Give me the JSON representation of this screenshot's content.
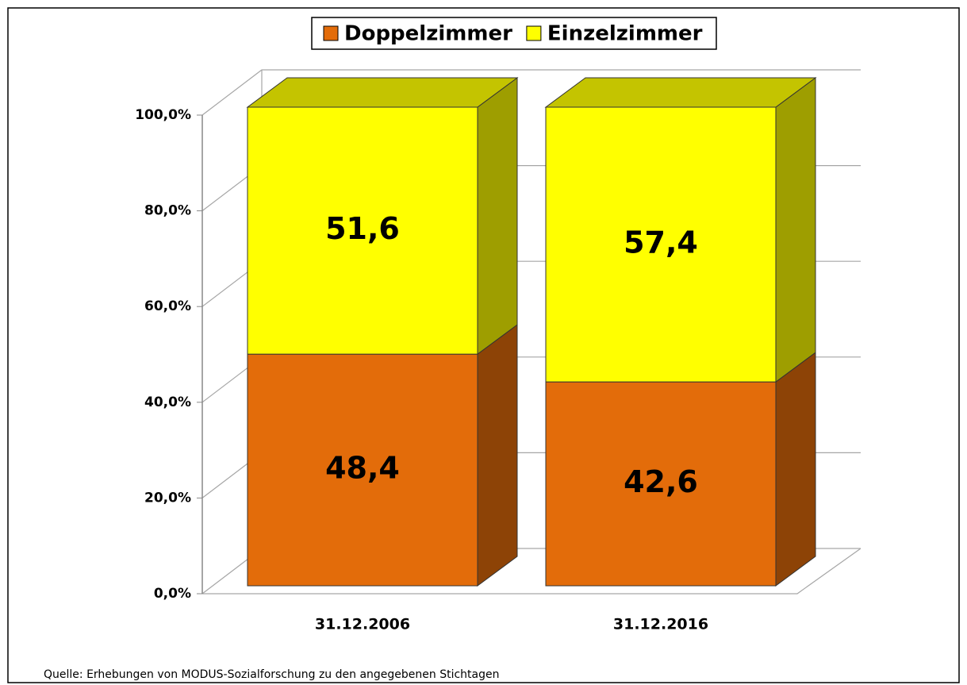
{
  "chart_data": {
    "type": "bar3d_stacked",
    "categories": [
      "31.12.2006",
      "31.12.2016"
    ],
    "series": [
      {
        "name": "Doppelzimmer",
        "color": "#e36c0a",
        "values": [
          48.4,
          42.6
        ],
        "value_labels": [
          "48,4",
          "42,6"
        ]
      },
      {
        "name": "Einzelzimmer",
        "color": "#ffff00",
        "values": [
          51.6,
          57.4
        ],
        "value_labels": [
          "51,6",
          "57,4"
        ]
      }
    ],
    "ylim": [
      0,
      100
    ],
    "yticks": [
      {
        "value": 0,
        "label": "0,0%"
      },
      {
        "value": 20,
        "label": "20,0%"
      },
      {
        "value": 40,
        "label": "40,0%"
      },
      {
        "value": 60,
        "label": "60,0%"
      },
      {
        "value": 80,
        "label": "80,0%"
      },
      {
        "value": 100,
        "label": "100,0%"
      }
    ],
    "grid": true,
    "legend": "top",
    "source": "Quelle: Erhebungen von MODUS-Sozialforschung zu den angegebenen Stichtagen"
  }
}
